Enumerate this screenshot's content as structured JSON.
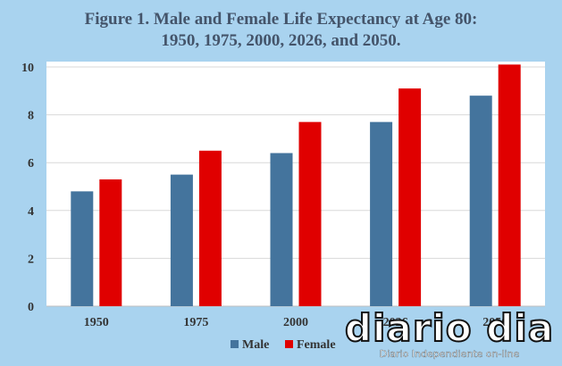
{
  "chart_data": {
    "type": "bar",
    "title_line1": "Figure 1. Male and Female Life Expectancy at Age 80:",
    "title_line2": "1950, 1975, 2000, 2026, and 2050.",
    "categories": [
      "1950",
      "1975",
      "2000",
      "2026",
      "2050"
    ],
    "series": [
      {
        "name": "Male",
        "color": "#44749d",
        "values": [
          4.8,
          5.5,
          6.4,
          7.7,
          8.8
        ]
      },
      {
        "name": "Female",
        "color": "#e00000",
        "values": [
          5.3,
          6.5,
          7.7,
          9.1,
          10.1
        ]
      }
    ],
    "ylim": [
      0,
      10
    ],
    "yticks": [
      0,
      2,
      4,
      6,
      8,
      10
    ],
    "grid": true,
    "legend_position": "bottom"
  },
  "watermark": {
    "logo": "diario dia",
    "tagline": "Diario Independiente on-line"
  }
}
